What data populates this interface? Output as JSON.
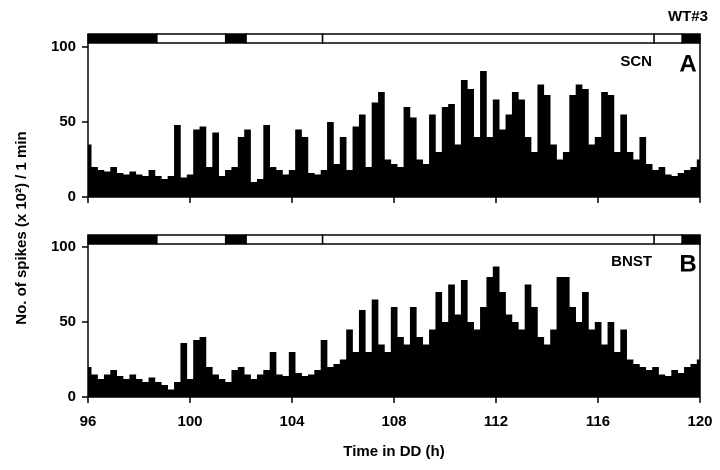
{
  "chart_data": {
    "type": "bar",
    "annotation": "WT#3",
    "xlabel": "Time in DD (h)",
    "ylabel": "No. of spikes (x 10²) / 1 min",
    "xlim": [
      96,
      120
    ],
    "xticks": [
      96,
      100,
      104,
      108,
      112,
      116,
      120
    ],
    "ylim": [
      0,
      100
    ],
    "yticks": [
      0,
      50,
      100
    ],
    "light_dark": [
      {
        "start": 96,
        "end": 98.7,
        "color": "#000000"
      },
      {
        "start": 98.7,
        "end": 101.4,
        "color": "#ffffff"
      },
      {
        "start": 101.4,
        "end": 102.2,
        "color": "#000000"
      },
      {
        "start": 102.2,
        "end": 105.2,
        "color": "#ffffff"
      },
      {
        "start": 105.2,
        "end": 118.2,
        "color": "#ffffff"
      },
      {
        "start": 118.2,
        "end": 119.3,
        "color": "#ffffff"
      },
      {
        "start": 119.3,
        "end": 120,
        "color": "#000000"
      }
    ],
    "x": [
      96,
      96.25,
      96.5,
      96.75,
      97,
      97.25,
      97.5,
      97.75,
      98,
      98.25,
      98.5,
      98.75,
      99,
      99.25,
      99.5,
      99.75,
      100,
      100.25,
      100.5,
      100.75,
      101,
      101.25,
      101.5,
      101.75,
      102,
      102.25,
      102.5,
      102.75,
      103,
      103.25,
      103.5,
      103.75,
      104,
      104.25,
      104.5,
      104.75,
      105,
      105.25,
      105.5,
      105.75,
      106,
      106.25,
      106.5,
      106.75,
      107,
      107.25,
      107.5,
      107.75,
      108,
      108.25,
      108.5,
      108.75,
      109,
      109.25,
      109.5,
      109.75,
      110,
      110.25,
      110.5,
      110.75,
      111,
      111.25,
      111.5,
      111.75,
      112,
      112.25,
      112.5,
      112.75,
      113,
      113.25,
      113.5,
      113.75,
      114,
      114.25,
      114.5,
      114.75,
      115,
      115.25,
      115.5,
      115.75,
      116,
      116.25,
      116.5,
      116.75,
      117,
      117.25,
      117.5,
      117.75,
      118,
      118.25,
      118.5,
      118.75,
      119,
      119.25,
      119.5,
      119.75,
      120
    ],
    "series": [
      {
        "name": "SCN",
        "panel": "A",
        "color": "#000000",
        "values": [
          35,
          20,
          18,
          17,
          20,
          16,
          15,
          17,
          15,
          14,
          18,
          14,
          12,
          14,
          48,
          13,
          15,
          45,
          47,
          20,
          43,
          14,
          18,
          20,
          40,
          45,
          10,
          12,
          48,
          20,
          18,
          15,
          18,
          45,
          40,
          16,
          15,
          18,
          50,
          22,
          40,
          18,
          47,
          55,
          20,
          63,
          70,
          25,
          22,
          20,
          60,
          53,
          25,
          22,
          55,
          30,
          60,
          62,
          35,
          78,
          72,
          40,
          84,
          40,
          65,
          45,
          55,
          70,
          65,
          40,
          30,
          75,
          68,
          35,
          25,
          30,
          68,
          75,
          72,
          35,
          40,
          70,
          68,
          30,
          55,
          30,
          25,
          40,
          22,
          18,
          20,
          15,
          14,
          16,
          18,
          20,
          25
        ]
      },
      {
        "name": "BNST",
        "panel": "B",
        "color": "#000000",
        "values": [
          20,
          15,
          12,
          15,
          18,
          14,
          12,
          15,
          12,
          10,
          13,
          10,
          8,
          5,
          10,
          36,
          12,
          38,
          40,
          20,
          15,
          12,
          10,
          18,
          20,
          15,
          12,
          15,
          18,
          30,
          15,
          14,
          30,
          16,
          14,
          15,
          18,
          38,
          20,
          22,
          25,
          45,
          30,
          58,
          30,
          65,
          35,
          30,
          60,
          40,
          35,
          60,
          40,
          35,
          45,
          70,
          50,
          75,
          55,
          78,
          50,
          45,
          60,
          80,
          87,
          70,
          55,
          50,
          45,
          75,
          60,
          40,
          35,
          45,
          80,
          80,
          60,
          50,
          70,
          45,
          50,
          35,
          50,
          30,
          45,
          25,
          22,
          20,
          18,
          20,
          15,
          14,
          18,
          16,
          20,
          22,
          25
        ]
      }
    ]
  }
}
